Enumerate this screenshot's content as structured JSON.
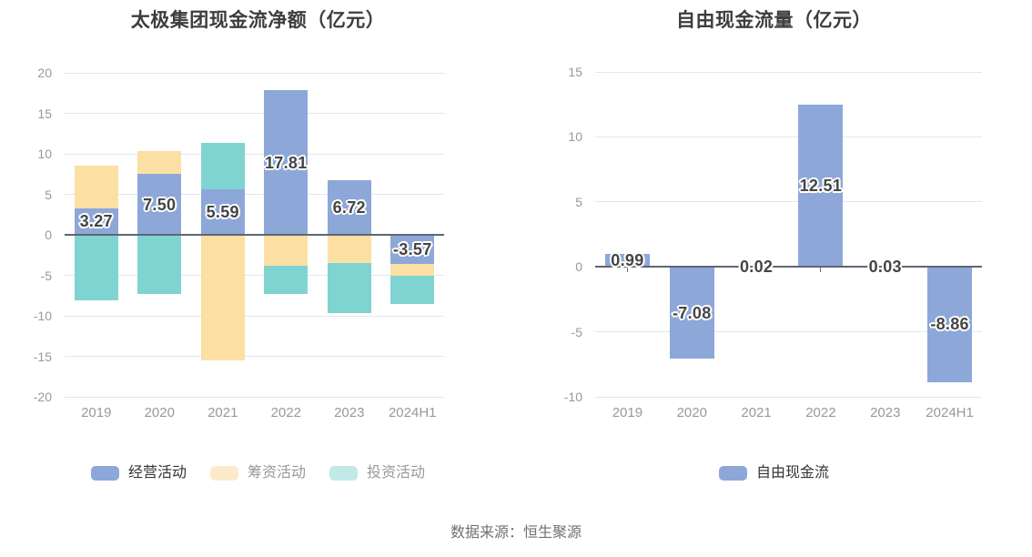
{
  "page": {
    "background": "#ffffff",
    "footer_source": "数据来源：恒生聚源"
  },
  "style": {
    "grid_color": "#e0e6f1",
    "zero_line_color": "#5f6672",
    "axis_label_color": "#999999",
    "title_color": "#3d3d3d",
    "data_label_color": "#454545",
    "footer_color": "#707070"
  },
  "chart_data": [
    {
      "type": "bar",
      "stacked": true,
      "title": "太极集团现金流净额（亿元）",
      "categories": [
        "2019",
        "2020",
        "2021",
        "2022",
        "2023",
        "2024H1"
      ],
      "ylim": [
        -20,
        20
      ],
      "yticks": [
        20,
        15,
        10,
        5,
        0,
        -5,
        -10,
        -15,
        -20
      ],
      "grid": true,
      "legend_position": "bottom",
      "series": [
        {
          "name": "经营活动",
          "color": "#8da8d8",
          "values": [
            3.27,
            7.5,
            5.59,
            17.81,
            6.72,
            -3.57
          ],
          "data_labels": [
            "3.27",
            "7.50",
            "5.59",
            "17.81",
            "6.72",
            "-3.57"
          ]
        },
        {
          "name": "筹资活动",
          "color": "#fbdfa3",
          "values": [
            5.3,
            2.85,
            -15.55,
            -3.85,
            -3.5,
            -1.45
          ]
        },
        {
          "name": "投资活动",
          "color": "#7fd4d1",
          "values": [
            -8.1,
            -7.3,
            5.75,
            -3.45,
            -6.2,
            -3.55
          ]
        }
      ],
      "legend": [
        {
          "label": "经营活动",
          "swatch_color": "#8da8d8",
          "text_color": "#333333"
        },
        {
          "label": "筹资活动",
          "swatch_color": "#fcebcb",
          "text_color": "#999999"
        },
        {
          "label": "投资活动",
          "swatch_color": "#c1e9e6",
          "text_color": "#999999"
        }
      ]
    },
    {
      "type": "bar",
      "stacked": false,
      "title": "自由现金流量（亿元）",
      "categories": [
        "2019",
        "2020",
        "2021",
        "2022",
        "2023",
        "2024H1"
      ],
      "ylim": [
        -10,
        15
      ],
      "yticks": [
        15,
        10,
        5,
        0,
        -5,
        -10
      ],
      "grid": true,
      "legend_position": "bottom",
      "series": [
        {
          "name": "自由现金流",
          "color": "#8da8d8",
          "values": [
            0.99,
            -7.08,
            0.02,
            12.51,
            0.03,
            -8.86
          ],
          "data_labels": [
            "0.99",
            "-7.08",
            "0.02",
            "12.51",
            "0.03",
            "-8.86"
          ]
        }
      ],
      "legend": [
        {
          "label": "自由现金流",
          "swatch_color": "#8da8d8",
          "text_color": "#333333"
        }
      ]
    }
  ]
}
